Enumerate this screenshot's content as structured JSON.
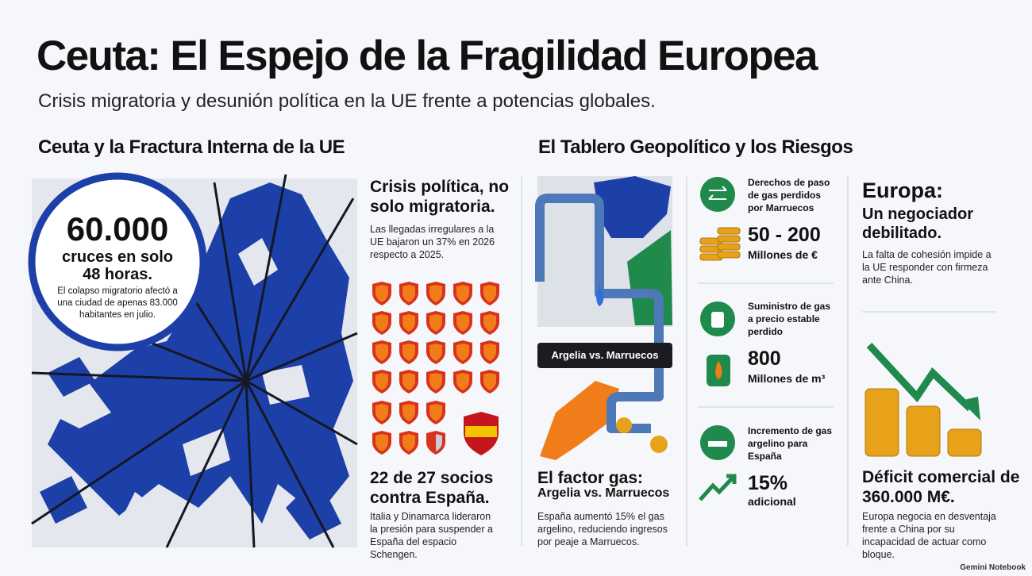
{
  "header": {
    "title": "Ceuta: El Espejo de la Fragilidad Europea",
    "subtitle": "Crisis migratoria y desunión política en la UE frente a potencias globales."
  },
  "left_section": {
    "heading": "Ceuta y la Fractura Interna de la UE",
    "badge": {
      "number": "60.000",
      "caption": "cruces en solo 48 horas.",
      "note": "El colapso migratorio afectó a una ciudad de apenas 83.000 habitantes en julio."
    },
    "crisis": {
      "heading": "Crisis política, no solo migratoria.",
      "text": "Las llegadas irregulares a la UE bajaron un 37% en 2026 respecto a 2025."
    },
    "partners": {
      "heading": "22 de 27 socios contra España.",
      "text": "Italia y Dinamarca lideraron la presión para suspender a España del espacio Schengen."
    }
  },
  "right_section": {
    "heading": "El Tablero Geopolítico y los Riesgos",
    "map_label": "Argelia vs. Marruecos",
    "gas": {
      "heading": "El factor gas:",
      "subheading": "Argelia vs. Marruecos",
      "text": "España aumentó 15% el gas argelino, reduciendo ingresos por peaje a Marruecos."
    },
    "stats": [
      {
        "label": "Derechos de paso de gas perdidos por Marruecos",
        "value": "50 - 200",
        "unit": "Millones de €"
      },
      {
        "label": "Suministro de gas a precio estable perdido",
        "value": "800",
        "unit": "Millones de m³"
      },
      {
        "label": "Incremento de gas argelino para España",
        "value": "15%",
        "unit": "adicional"
      }
    ],
    "europe": {
      "heading": "Europa:",
      "subheading": "Un negociador debilitado.",
      "text": "La falta de cohesión impide a la UE responder con firmeza ante China.",
      "deficit": "Déficit comercial de 360.000 M€.",
      "deficit_text": "Europa negocia en desventaja frente a China por su incapacidad de actuar como bloque."
    }
  },
  "footer": {
    "brand": "Gemini Notebook"
  }
}
